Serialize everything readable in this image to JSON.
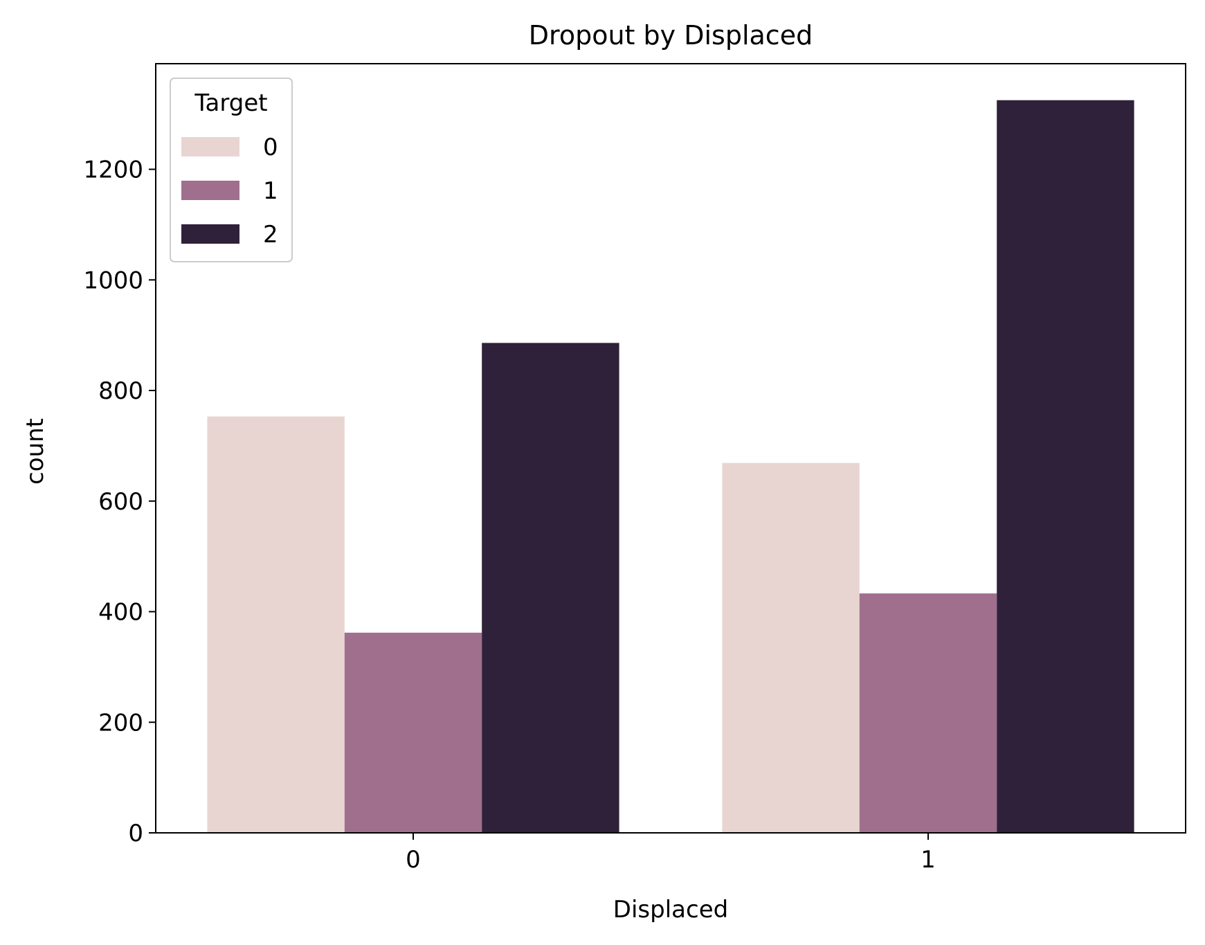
{
  "chart_data": {
    "type": "bar",
    "title": "Dropout by Displaced",
    "xlabel": "Displaced",
    "ylabel": "count",
    "categories": [
      "0",
      "1"
    ],
    "series": [
      {
        "name": "0",
        "color": "#e8d5d1",
        "values": [
          753,
          669
        ]
      },
      {
        "name": "1",
        "color": "#a06f8e",
        "values": [
          362,
          433
        ]
      },
      {
        "name": "2",
        "color": "#2f2139",
        "values": [
          886,
          1325
        ]
      }
    ],
    "ylim": [
      0,
      1391
    ],
    "yticks": [
      0,
      200,
      400,
      600,
      800,
      1000,
      1200
    ],
    "grid": false,
    "legend": {
      "title": "Target",
      "placement": "top-left"
    }
  }
}
